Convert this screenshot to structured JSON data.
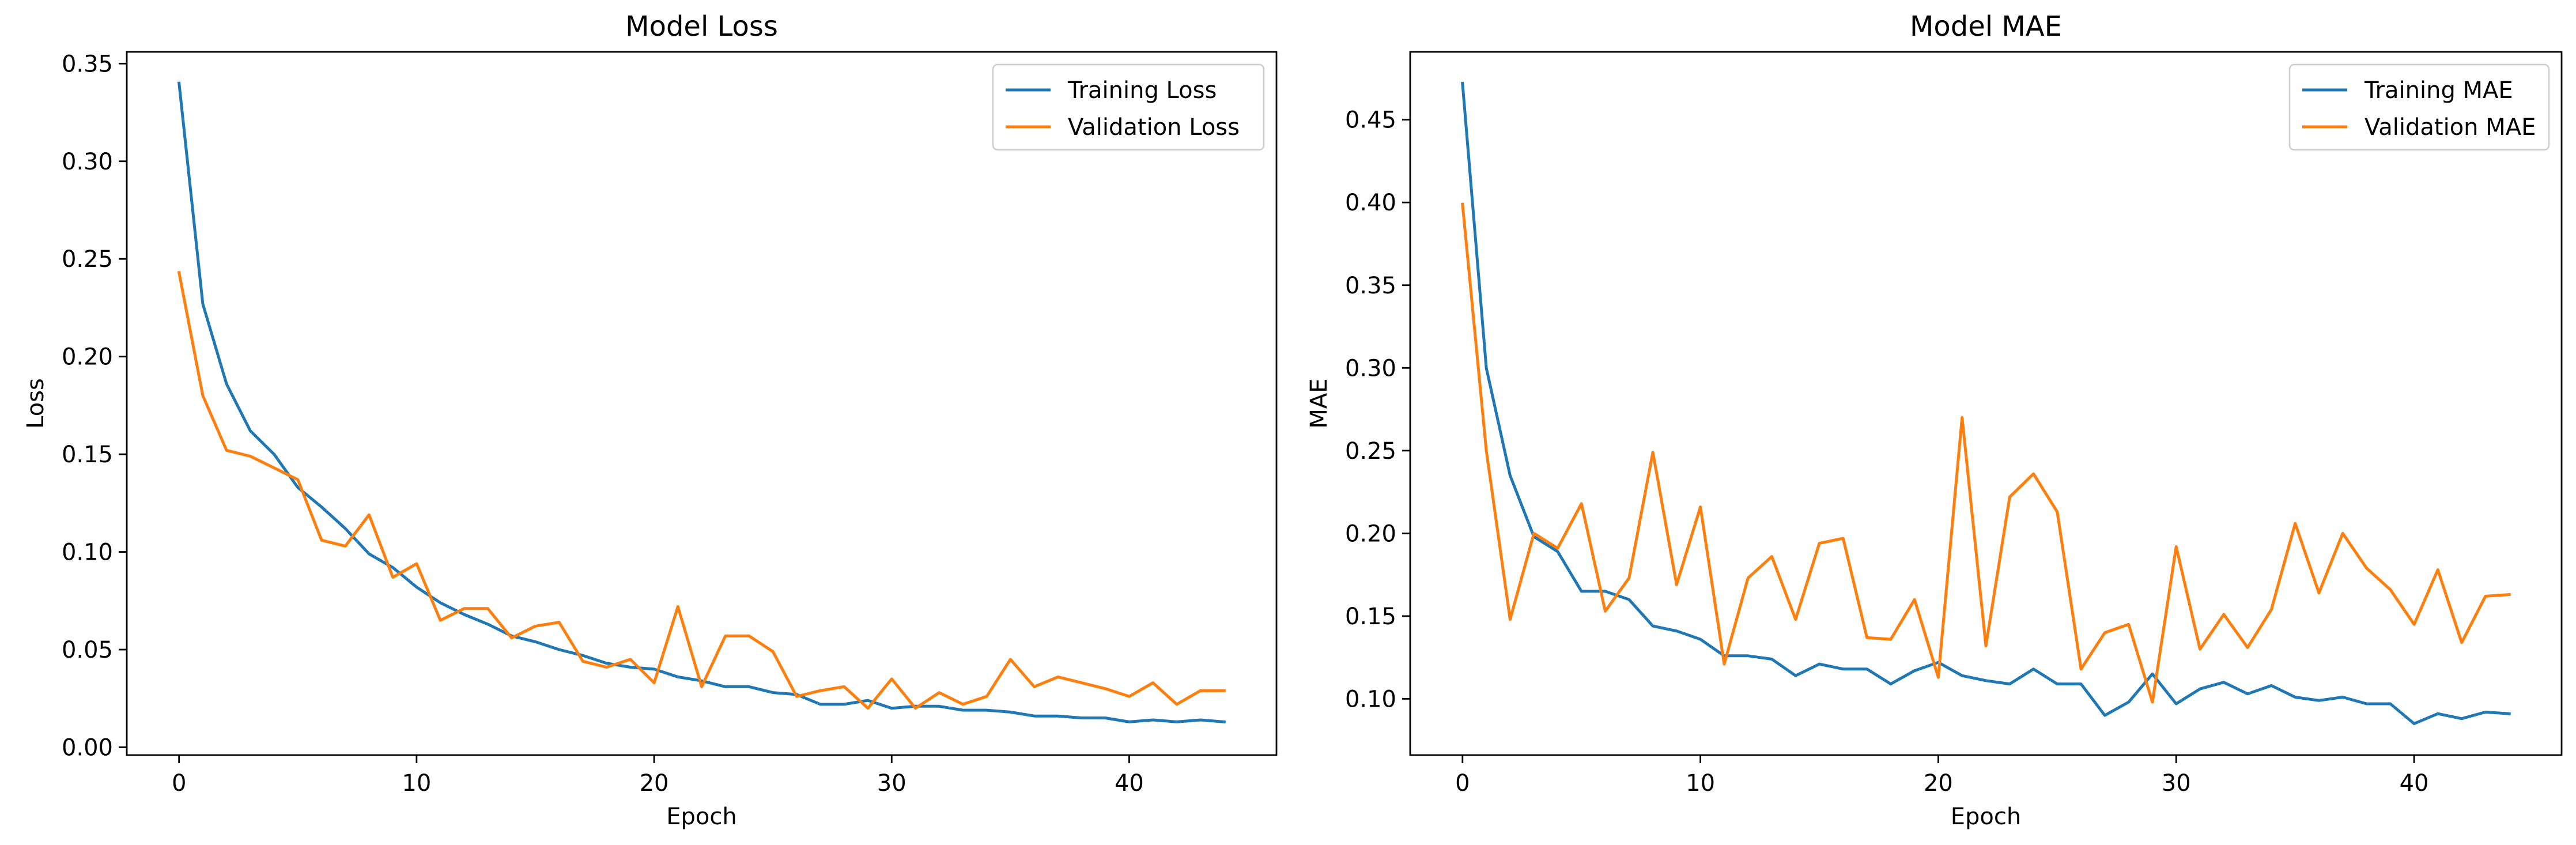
{
  "chart_data": [
    {
      "type": "line",
      "title": "Model Loss",
      "xlabel": "Epoch",
      "ylabel": "Loss",
      "xlim": [
        -2.2,
        46.2
      ],
      "ylim": [
        -0.004,
        0.356
      ],
      "xticks": [
        0,
        10,
        20,
        30,
        40
      ],
      "yticks": [
        0.0,
        0.05,
        0.1,
        0.15,
        0.2,
        0.25,
        0.3,
        0.35
      ],
      "ytick_labels": [
        "0.00",
        "0.05",
        "0.10",
        "0.15",
        "0.20",
        "0.25",
        "0.30",
        "0.35"
      ],
      "legend_position": "top-right",
      "grid": false,
      "x": [
        0,
        1,
        2,
        3,
        4,
        5,
        6,
        7,
        8,
        9,
        10,
        11,
        12,
        13,
        14,
        15,
        16,
        17,
        18,
        19,
        20,
        21,
        22,
        23,
        24,
        25,
        26,
        27,
        28,
        29,
        30,
        31,
        32,
        33,
        34,
        35,
        36,
        37,
        38,
        39,
        40,
        41,
        42,
        43,
        44
      ],
      "series": [
        {
          "name": "Training Loss",
          "color": "#1f77b4",
          "values": [
            0.34,
            0.227,
            0.186,
            0.162,
            0.15,
            0.133,
            0.123,
            0.112,
            0.099,
            0.092,
            0.082,
            0.074,
            0.068,
            0.063,
            0.057,
            0.054,
            0.05,
            0.047,
            0.043,
            0.041,
            0.04,
            0.036,
            0.034,
            0.031,
            0.031,
            0.028,
            0.027,
            0.022,
            0.022,
            0.024,
            0.02,
            0.021,
            0.021,
            0.019,
            0.019,
            0.018,
            0.016,
            0.016,
            0.015,
            0.015,
            0.013,
            0.014,
            0.013,
            0.014,
            0.013
          ]
        },
        {
          "name": "Validation Loss",
          "color": "#ff7f0e",
          "values": [
            0.243,
            0.18,
            0.152,
            0.149,
            0.143,
            0.137,
            0.106,
            0.103,
            0.119,
            0.087,
            0.094,
            0.065,
            0.071,
            0.071,
            0.056,
            0.062,
            0.064,
            0.044,
            0.041,
            0.045,
            0.033,
            0.072,
            0.031,
            0.057,
            0.057,
            0.049,
            0.026,
            0.029,
            0.031,
            0.02,
            0.035,
            0.02,
            0.028,
            0.022,
            0.026,
            0.045,
            0.031,
            0.036,
            0.033,
            0.03,
            0.026,
            0.033,
            0.022,
            0.029,
            0.029
          ]
        }
      ]
    },
    {
      "type": "line",
      "title": "Model MAE",
      "xlabel": "Epoch",
      "ylabel": "MAE",
      "xlim": [
        -2.2,
        46.2
      ],
      "ylim": [
        0.066,
        0.491
      ],
      "xticks": [
        0,
        10,
        20,
        30,
        40
      ],
      "yticks": [
        0.1,
        0.15,
        0.2,
        0.25,
        0.3,
        0.35,
        0.4,
        0.45
      ],
      "ytick_labels": [
        "0.10",
        "0.15",
        "0.20",
        "0.25",
        "0.30",
        "0.35",
        "0.40",
        "0.45"
      ],
      "legend_position": "top-right",
      "grid": false,
      "x": [
        0,
        1,
        2,
        3,
        4,
        5,
        6,
        7,
        8,
        9,
        10,
        11,
        12,
        13,
        14,
        15,
        16,
        17,
        18,
        19,
        20,
        21,
        22,
        23,
        24,
        25,
        26,
        27,
        28,
        29,
        30,
        31,
        32,
        33,
        34,
        35,
        36,
        37,
        38,
        39,
        40,
        41,
        42,
        43,
        44
      ],
      "series": [
        {
          "name": "Training MAE",
          "color": "#1f77b4",
          "values": [
            0.472,
            0.3,
            0.235,
            0.198,
            0.189,
            0.165,
            0.165,
            0.16,
            0.144,
            0.141,
            0.136,
            0.126,
            0.126,
            0.124,
            0.114,
            0.121,
            0.118,
            0.118,
            0.109,
            0.117,
            0.122,
            0.114,
            0.111,
            0.109,
            0.118,
            0.109,
            0.109,
            0.09,
            0.098,
            0.115,
            0.097,
            0.106,
            0.11,
            0.103,
            0.108,
            0.101,
            0.099,
            0.101,
            0.097,
            0.097,
            0.085,
            0.091,
            0.088,
            0.092,
            0.091
          ]
        },
        {
          "name": "Validation MAE",
          "color": "#ff7f0e",
          "values": [
            0.399,
            0.25,
            0.148,
            0.2,
            0.191,
            0.218,
            0.153,
            0.173,
            0.249,
            0.169,
            0.216,
            0.121,
            0.173,
            0.186,
            0.148,
            0.194,
            0.197,
            0.137,
            0.136,
            0.16,
            0.113,
            0.27,
            0.132,
            0.222,
            0.236,
            0.213,
            0.118,
            0.14,
            0.145,
            0.098,
            0.192,
            0.13,
            0.151,
            0.131,
            0.154,
            0.206,
            0.164,
            0.2,
            0.179,
            0.166,
            0.145,
            0.178,
            0.134,
            0.162,
            0.163
          ]
        }
      ]
    }
  ]
}
